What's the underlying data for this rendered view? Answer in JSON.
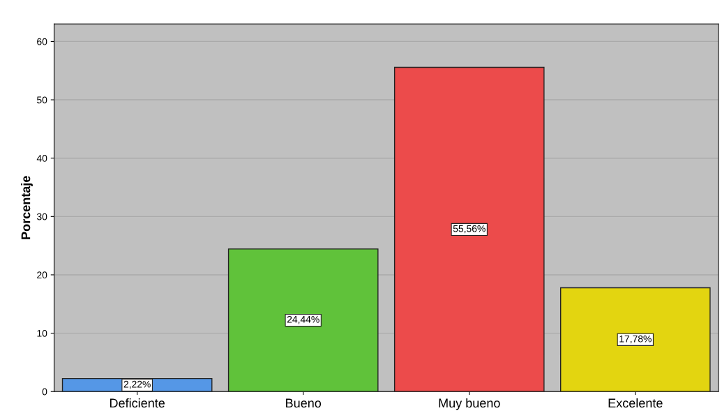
{
  "chart_data": {
    "type": "bar",
    "ylabel": "Porcentaje",
    "categories": [
      "Deficiente",
      "Bueno",
      "Muy bueno",
      "Excelente"
    ],
    "values": [
      2.22,
      24.44,
      55.56,
      17.78
    ],
    "colors": [
      "#5597e6",
      "#60c23a",
      "#ec4b4b",
      "#e3d510"
    ],
    "value_labels": [
      "2,22%",
      "24,44%",
      "55,56%",
      "17,78%"
    ],
    "ylim": [
      0,
      63
    ],
    "yticks": [
      0,
      10,
      20,
      30,
      40,
      50,
      60
    ],
    "grid": "y",
    "legend": false
  }
}
